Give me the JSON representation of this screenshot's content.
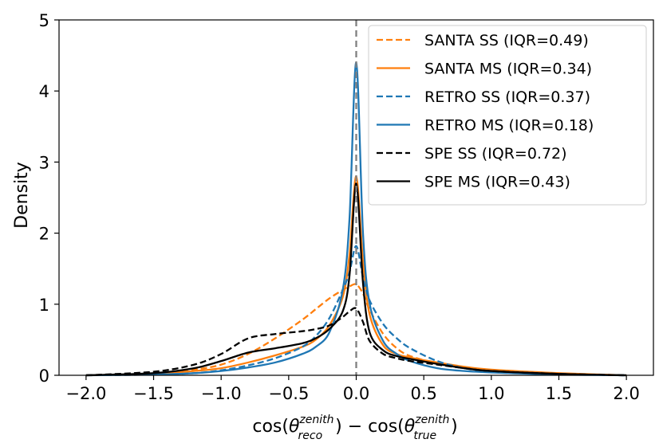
{
  "chart_data": {
    "type": "line",
    "title": "",
    "xlabel": {
      "main1": "cos(",
      "theta1": "θ",
      "sup1": "zenith",
      "sub1": "reco",
      "mid": ") − cos(",
      "theta2": "θ",
      "sup2": "zenith",
      "sub2": "true",
      "end": ")"
    },
    "ylabel": "Density",
    "xlim": [
      -2.2,
      2.2
    ],
    "ylim": [
      0,
      5
    ],
    "xticks": [
      "−2.0",
      "−1.5",
      "−1.0",
      "−0.5",
      "0.0",
      "0.5",
      "1.0",
      "1.5",
      "2.0"
    ],
    "xtick_values": [
      -2.0,
      -1.5,
      -1.0,
      -0.5,
      0.0,
      0.5,
      1.0,
      1.5,
      2.0
    ],
    "yticks": [
      "0",
      "1",
      "2",
      "3",
      "4",
      "5"
    ],
    "ytick_values": [
      0,
      1,
      2,
      3,
      4,
      5
    ],
    "vline": {
      "x": 0.0,
      "color": "#808080",
      "style": "dashed"
    },
    "legend": {
      "position": "top-right"
    },
    "x": [
      -2.0,
      -1.5,
      -1.2,
      -1.0,
      -0.8,
      -0.6,
      -0.4,
      -0.3,
      -0.2,
      -0.1,
      -0.05,
      0.0,
      0.05,
      0.1,
      0.2,
      0.3,
      0.4,
      0.6,
      0.8,
      1.0,
      1.5,
      2.0
    ],
    "series": [
      {
        "name": "SANTA SS (IQR=0.49)",
        "color": "#ff7f0e",
        "style": "dashed",
        "values": [
          0.0,
          0.03,
          0.08,
          0.15,
          0.3,
          0.52,
          0.78,
          0.93,
          1.08,
          1.2,
          1.25,
          1.28,
          1.15,
          0.92,
          0.58,
          0.38,
          0.27,
          0.17,
          0.11,
          0.07,
          0.02,
          0.0
        ]
      },
      {
        "name": "SANTA MS (IQR=0.34)",
        "color": "#ff7f0e",
        "style": "solid",
        "values": [
          0.0,
          0.02,
          0.06,
          0.1,
          0.18,
          0.28,
          0.4,
          0.5,
          0.7,
          1.1,
          1.7,
          2.8,
          1.6,
          0.85,
          0.42,
          0.3,
          0.25,
          0.18,
          0.12,
          0.08,
          0.03,
          0.0
        ]
      },
      {
        "name": "RETRO SS (IQR=0.37)",
        "color": "#1f77b4",
        "style": "dashed",
        "values": [
          0.0,
          0.01,
          0.03,
          0.07,
          0.14,
          0.24,
          0.4,
          0.55,
          0.8,
          1.2,
          1.45,
          1.82,
          1.38,
          1.05,
          0.72,
          0.52,
          0.38,
          0.2,
          0.1,
          0.06,
          0.02,
          0.0
        ]
      },
      {
        "name": "RETRO MS (IQR=0.18)",
        "color": "#1f77b4",
        "style": "solid",
        "values": [
          0.0,
          0.01,
          0.03,
          0.06,
          0.11,
          0.18,
          0.3,
          0.4,
          0.6,
          1.2,
          2.2,
          4.4,
          2.0,
          1.0,
          0.48,
          0.3,
          0.2,
          0.1,
          0.06,
          0.04,
          0.01,
          0.0
        ]
      },
      {
        "name": "SPE SS (IQR=0.72)",
        "color": "#000000",
        "style": "dashed",
        "values": [
          0.0,
          0.05,
          0.15,
          0.3,
          0.52,
          0.58,
          0.62,
          0.65,
          0.7,
          0.82,
          0.9,
          0.94,
          0.75,
          0.48,
          0.3,
          0.24,
          0.2,
          0.15,
          0.1,
          0.06,
          0.02,
          0.0
        ]
      },
      {
        "name": "SPE MS (IQR=0.43)",
        "color": "#000000",
        "style": "solid",
        "values": [
          0.0,
          0.03,
          0.1,
          0.2,
          0.32,
          0.38,
          0.45,
          0.52,
          0.65,
          0.9,
          1.4,
          2.7,
          1.3,
          0.6,
          0.35,
          0.27,
          0.23,
          0.16,
          0.1,
          0.06,
          0.02,
          0.0
        ]
      }
    ]
  }
}
